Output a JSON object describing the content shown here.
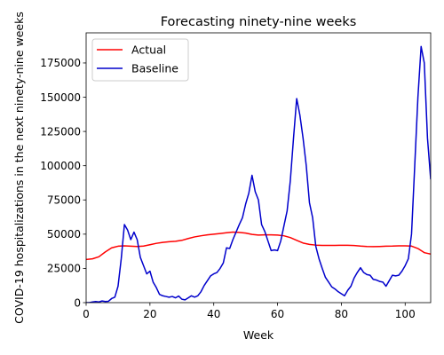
{
  "chart_data": {
    "type": "line",
    "title": "Forecasting ninety-nine weeks",
    "xlabel": "Week",
    "ylabel": "COVID-19 hospitalizations in the next ninety-nine weeks",
    "xlim": [
      0,
      108
    ],
    "ylim": [
      0,
      197000
    ],
    "xticks": [
      0,
      20,
      40,
      60,
      80,
      100
    ],
    "yticks": [
      0,
      25000,
      50000,
      75000,
      100000,
      125000,
      150000,
      175000
    ],
    "legend_position": "upper-left",
    "grid": false,
    "series": [
      {
        "name": "Actual",
        "color": "#ff0000",
        "x": [
          0,
          2,
          4,
          6,
          8,
          10,
          12,
          14,
          16,
          18,
          20,
          22,
          24,
          26,
          28,
          30,
          32,
          34,
          36,
          38,
          40,
          42,
          44,
          46,
          48,
          50,
          52,
          54,
          56,
          58,
          60,
          62,
          64,
          66,
          68,
          70,
          72,
          74,
          76,
          78,
          80,
          82,
          84,
          86,
          88,
          90,
          92,
          94,
          96,
          98,
          100,
          102,
          104,
          106,
          108
        ],
        "y": [
          31500,
          32000,
          33500,
          37000,
          40000,
          41200,
          41500,
          41200,
          41000,
          41300,
          42300,
          43300,
          44000,
          44500,
          44800,
          45500,
          46800,
          48000,
          48800,
          49500,
          50000,
          50500,
          51000,
          51500,
          51300,
          50800,
          49800,
          49300,
          49500,
          49500,
          49300,
          48800,
          47500,
          45500,
          43500,
          42500,
          42000,
          41800,
          41800,
          41800,
          41900,
          41900,
          41700,
          41300,
          41000,
          40900,
          41000,
          41200,
          41300,
          41500,
          41500,
          41300,
          39500,
          36500,
          35500
        ]
      },
      {
        "name": "Baseline",
        "color": "#0000cc",
        "x": [
          0,
          1,
          2,
          3,
          4,
          5,
          6,
          7,
          8,
          9,
          10,
          11,
          12,
          13,
          14,
          15,
          16,
          17,
          18,
          19,
          20,
          21,
          22,
          23,
          24,
          25,
          26,
          27,
          28,
          29,
          30,
          31,
          32,
          33,
          34,
          35,
          36,
          37,
          38,
          39,
          40,
          41,
          42,
          43,
          44,
          45,
          46,
          47,
          48,
          49,
          50,
          51,
          52,
          53,
          54,
          55,
          56,
          57,
          58,
          59,
          60,
          61,
          62,
          63,
          64,
          65,
          66,
          67,
          68,
          69,
          70,
          71,
          72,
          73,
          74,
          75,
          76,
          77,
          78,
          79,
          80,
          81,
          82,
          83,
          84,
          85,
          86,
          87,
          88,
          89,
          90,
          91,
          92,
          93,
          94,
          95,
          96,
          97,
          98,
          99,
          100,
          101,
          102,
          103,
          104,
          105,
          106,
          107,
          108
        ],
        "y": [
          0,
          0,
          500,
          800,
          500,
          1200,
          800,
          1000,
          3000,
          4000,
          12000,
          32000,
          57000,
          53000,
          46000,
          51500,
          46000,
          33000,
          27000,
          21000,
          23000,
          15000,
          11000,
          6000,
          5000,
          4500,
          4000,
          4500,
          3500,
          4800,
          2500,
          2000,
          3500,
          5000,
          4000,
          5000,
          8000,
          12500,
          16000,
          19500,
          21000,
          22000,
          25000,
          29000,
          40000,
          39500,
          46000,
          51500,
          57000,
          62000,
          72000,
          80000,
          93000,
          81000,
          75000,
          57000,
          52000,
          45000,
          38000,
          38500,
          38000,
          45000,
          56000,
          67000,
          89000,
          120000,
          149000,
          137000,
          120000,
          100000,
          73000,
          62000,
          41000,
          32000,
          25000,
          18500,
          15000,
          11500,
          10000,
          8000,
          6500,
          5000,
          9000,
          12000,
          18000,
          22000,
          25500,
          22000,
          20500,
          20000,
          17000,
          16500,
          15500,
          15000,
          12000,
          16000,
          20000,
          19500,
          20000,
          23000,
          27000,
          32000,
          50000,
          100000,
          150000,
          187000,
          175000,
          120000,
          90000
        ]
      }
    ]
  }
}
